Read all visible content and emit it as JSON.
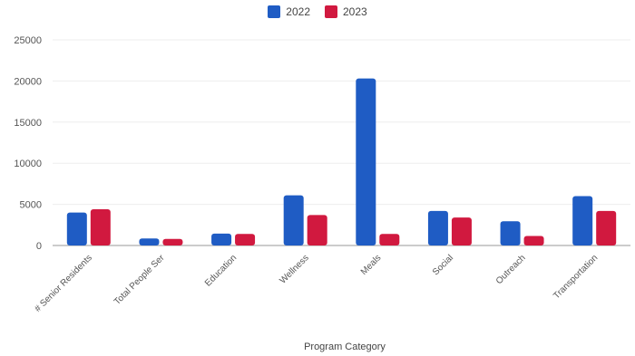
{
  "chart_data": {
    "type": "bar",
    "categories": [
      "# Senior Residents",
      "Total People Ser",
      "Education",
      "Wellness",
      "Meals",
      "Social",
      "Outreach",
      "Transportation"
    ],
    "series": [
      {
        "name": "2022",
        "color": "#1f5cc4",
        "values": [
          4000,
          850,
          1450,
          6100,
          20300,
          4200,
          2950,
          6000
        ]
      },
      {
        "name": "2023",
        "color": "#d1193f",
        "values": [
          4400,
          800,
          1400,
          3700,
          1400,
          3400,
          1150,
          4200
        ]
      }
    ],
    "title": "",
    "xlabel": "Program Category",
    "ylabel": "",
    "ylim": [
      0,
      25000
    ],
    "yticks": [
      "0",
      "5000",
      "10000",
      "15000",
      "20000",
      "25000"
    ],
    "grid": true,
    "legend_position": "top-center"
  }
}
